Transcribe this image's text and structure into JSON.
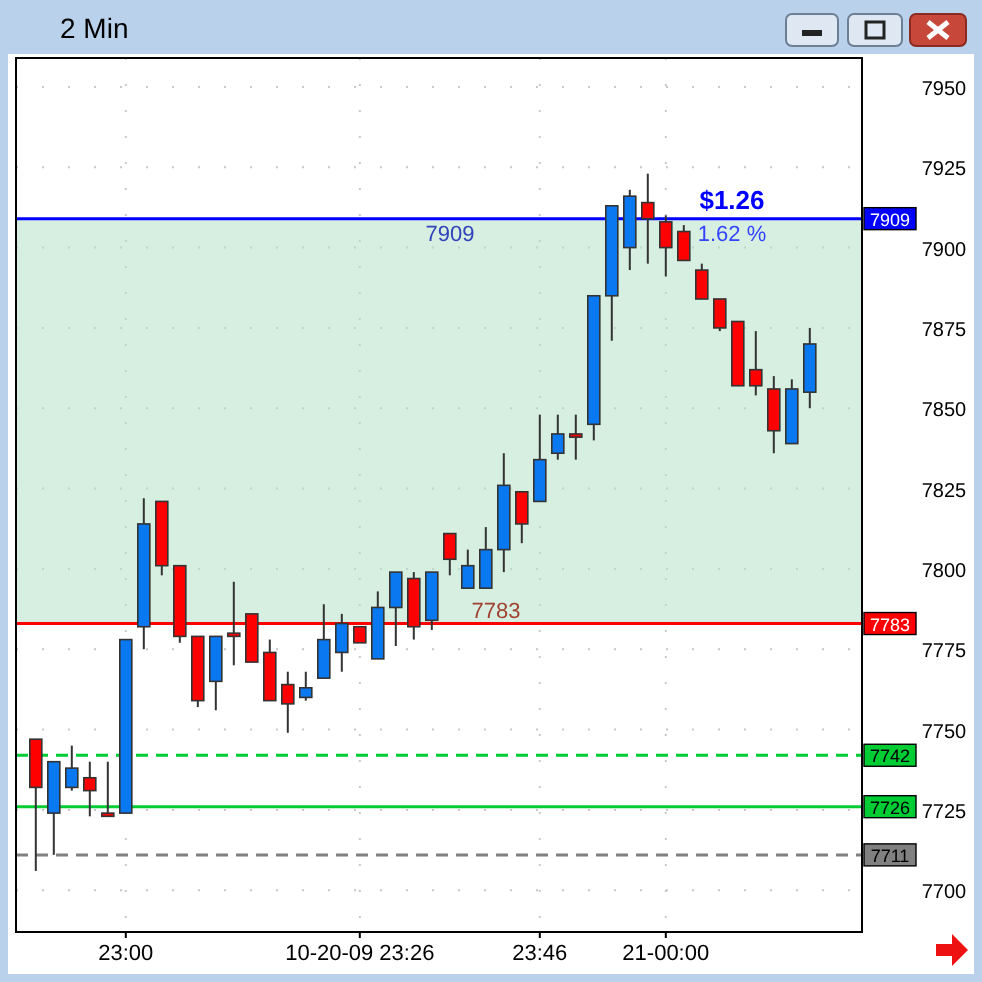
{
  "chart_data": {
    "type": "candlestick",
    "title": "2 Min",
    "categories": [
      null,
      null,
      null,
      null,
      null,
      "23:00",
      null,
      null,
      null,
      null,
      null,
      null,
      null,
      null,
      null,
      null,
      null,
      null,
      "10-20-09 23:26",
      null,
      null,
      null,
      null,
      null,
      null,
      null,
      null,
      null,
      "23:46",
      null,
      null,
      null,
      null,
      null,
      null,
      "21-00:00",
      null,
      null,
      null,
      null,
      null,
      null,
      null,
      null
    ],
    "ohlc": [
      [
        7747,
        7747,
        7706,
        7732
      ],
      [
        7724,
        7740,
        7711,
        7740
      ],
      [
        7732,
        7745,
        7731,
        7738
      ],
      [
        7735,
        7740,
        7723,
        7731
      ],
      [
        7724,
        7740,
        7723,
        7723
      ],
      [
        7724,
        7778,
        7724,
        7778
      ],
      [
        7782,
        7822,
        7775,
        7814
      ],
      [
        7821,
        7821,
        7798,
        7801
      ],
      [
        7801,
        7801,
        7777,
        7779
      ],
      [
        7779,
        7779,
        7757,
        7759
      ],
      [
        7765,
        7779,
        7756,
        7779
      ],
      [
        7780,
        7796,
        7770,
        7779
      ],
      [
        7786,
        7786,
        7771,
        7771
      ],
      [
        7774,
        7778,
        7759,
        7759
      ],
      [
        7764,
        7768,
        7749,
        7758
      ],
      [
        7760,
        7768,
        7759,
        7763
      ],
      [
        7766,
        7789,
        7766,
        7778
      ],
      [
        7774,
        7786,
        7768,
        7783
      ],
      [
        7782,
        7782,
        7777,
        7777
      ],
      [
        7772,
        7793,
        7772,
        7788
      ],
      [
        7788,
        7799,
        7776,
        7799
      ],
      [
        7797,
        7799,
        7778,
        7782
      ],
      [
        7784,
        7799,
        7781,
        7799
      ],
      [
        7811,
        7811,
        7798,
        7803
      ],
      [
        7794,
        7806,
        7794,
        7801
      ],
      [
        7794,
        7813,
        7794,
        7806
      ],
      [
        7806,
        7836,
        7799,
        7826
      ],
      [
        7824,
        7824,
        7808,
        7814
      ],
      [
        7821,
        7848,
        7821,
        7834
      ],
      [
        7836,
        7848,
        7834,
        7842
      ],
      [
        7842,
        7848,
        7834,
        7841
      ],
      [
        7845,
        7885,
        7840,
        7885
      ],
      [
        7885,
        7913,
        7871,
        7913
      ],
      [
        7900,
        7918,
        7893,
        7916
      ],
      [
        7914,
        7923,
        7895,
        7909
      ],
      [
        7908,
        7910,
        7891,
        7900
      ],
      [
        7905,
        7907,
        7896,
        7896
      ],
      [
        7893,
        7895,
        7884,
        7884
      ],
      [
        7884,
        7884,
        7874,
        7875
      ],
      [
        7877,
        7877,
        7857,
        7857
      ],
      [
        7862,
        7874,
        7854,
        7857
      ],
      [
        7856,
        7860,
        7836,
        7843
      ],
      [
        7839,
        7859,
        7839,
        7856
      ],
      [
        7855,
        7875,
        7850,
        7870
      ]
    ],
    "ylim": [
      7687,
      7959
    ],
    "yticks": [
      7700,
      7725,
      7750,
      7775,
      7800,
      7825,
      7850,
      7875,
      7900,
      7925,
      7950
    ],
    "grid": true,
    "ref_lines": [
      {
        "axis": "y",
        "value": 7909,
        "label": "7909",
        "color": "#0000ff"
      },
      {
        "axis": "y",
        "value": 7783,
        "label": "7783",
        "color": "#ff0000"
      },
      {
        "axis": "y",
        "value": 7742,
        "label": "7742",
        "color": "#00cc33",
        "line_style": "dashed"
      },
      {
        "axis": "y",
        "value": 7726,
        "label": "7726",
        "color": "#00cc33"
      },
      {
        "axis": "y",
        "value": 7711,
        "label": "7711",
        "color": "#808080",
        "line_style": "dashed"
      }
    ],
    "bands": [
      {
        "axis": "y",
        "from": 7783,
        "to": 7909,
        "color": "#b4e2c8"
      }
    ],
    "annotations": [
      {
        "text": "$1.26",
        "y": 7909
      },
      {
        "text": "1.62 %",
        "y": 7909
      },
      {
        "text": "7909",
        "y": 7909
      },
      {
        "text": "7783",
        "y": 7783
      }
    ]
  }
}
